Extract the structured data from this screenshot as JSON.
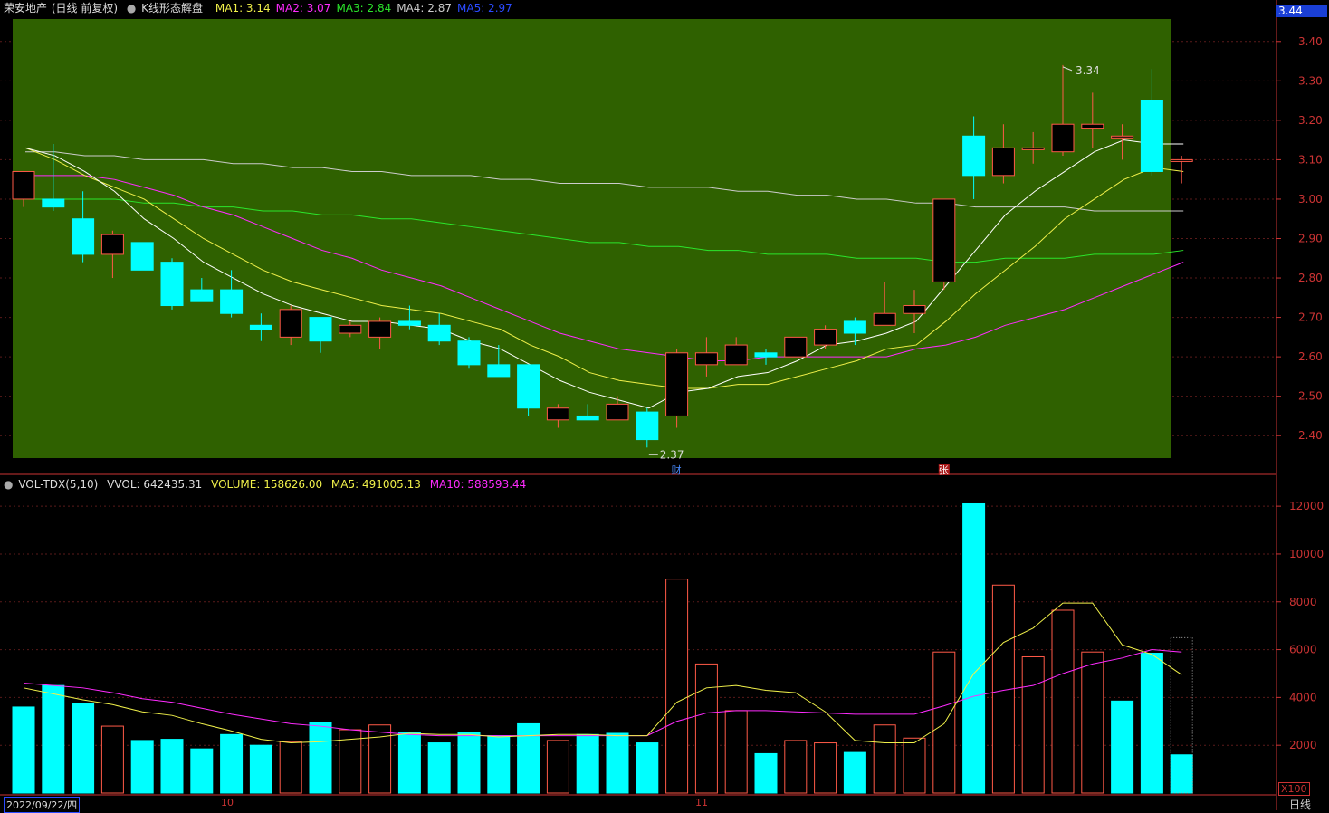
{
  "header": {
    "stock": "荣安地产",
    "mode": "(日线 前复权)",
    "indicator": "K线形态解盘",
    "ma": [
      {
        "label": "MA1:",
        "value": "3.14",
        "color": "#f0f04a"
      },
      {
        "label": "MA2:",
        "value": "3.07",
        "color": "#ff2bff"
      },
      {
        "label": "MA3:",
        "value": "2.84",
        "color": "#2be62b"
      },
      {
        "label": "MA4:",
        "value": "2.87",
        "color": "#cccccc"
      },
      {
        "label": "MA5:",
        "value": "2.97",
        "color": "#2b4bff"
      }
    ],
    "current_price": "3.44"
  },
  "volume_header": {
    "name": "VOL-TDX(5,10)",
    "vvol": "VVOL: 642435.31",
    "volume": "VOLUME: 158626.00",
    "ma5": "MA5: 491005.13",
    "ma10": "MA10: 588593.44"
  },
  "footer": {
    "date": "2022/09/22/四",
    "month_labels": [
      "10",
      "11"
    ],
    "period": "日线",
    "unit": "X100"
  },
  "markers": {
    "cai": "财",
    "zhang": "张",
    "high_label": "3.34",
    "low_label": "2.37"
  },
  "colors": {
    "panel_bg": "#2f6100",
    "up": "#ff5a48",
    "down": "#00ffff",
    "ma1": "#ffffff",
    "ma2": "#f0f04a",
    "ma3": "#ff2bff",
    "ma4": "#2be62b",
    "ma5": "#cccccc",
    "vol_ma5": "#f0f04a",
    "vol_ma10": "#ff2bff",
    "axis": "#cc3333"
  },
  "chart_data": {
    "type": "candlestick",
    "price_axis": {
      "ticks": [
        "3.40",
        "3.30",
        "3.20",
        "3.10",
        "3.00",
        "2.90",
        "2.80",
        "2.70",
        "2.60",
        "2.50",
        "2.40"
      ],
      "range": [
        2.37,
        3.44
      ]
    },
    "volume_axis": {
      "ticks": [
        "12000",
        "10000",
        "8000",
        "6000",
        "4000",
        "2000"
      ],
      "range": [
        0,
        12800
      ]
    },
    "candles": [
      {
        "o": 3.0,
        "h": 3.07,
        "l": 2.98,
        "c": 3.07
      },
      {
        "o": 3.0,
        "h": 3.14,
        "l": 2.97,
        "c": 2.98
      },
      {
        "o": 2.95,
        "h": 3.02,
        "l": 2.84,
        "c": 2.86
      },
      {
        "o": 2.86,
        "h": 2.92,
        "l": 2.8,
        "c": 2.91
      },
      {
        "o": 2.89,
        "h": 2.89,
        "l": 2.82,
        "c": 2.82
      },
      {
        "o": 2.84,
        "h": 2.85,
        "l": 2.72,
        "c": 2.73
      },
      {
        "o": 2.77,
        "h": 2.8,
        "l": 2.74,
        "c": 2.74
      },
      {
        "o": 2.77,
        "h": 2.82,
        "l": 2.7,
        "c": 2.71
      },
      {
        "o": 2.68,
        "h": 2.71,
        "l": 2.64,
        "c": 2.67
      },
      {
        "o": 2.65,
        "h": 2.73,
        "l": 2.63,
        "c": 2.72
      },
      {
        "o": 2.7,
        "h": 2.7,
        "l": 2.61,
        "c": 2.64
      },
      {
        "o": 2.66,
        "h": 2.69,
        "l": 2.65,
        "c": 2.68
      },
      {
        "o": 2.65,
        "h": 2.7,
        "l": 2.62,
        "c": 2.69
      },
      {
        "o": 2.69,
        "h": 2.73,
        "l": 2.67,
        "c": 2.68
      },
      {
        "o": 2.68,
        "h": 2.71,
        "l": 2.63,
        "c": 2.64
      },
      {
        "o": 2.64,
        "h": 2.65,
        "l": 2.57,
        "c": 2.58
      },
      {
        "o": 2.58,
        "h": 2.63,
        "l": 2.55,
        "c": 2.55
      },
      {
        "o": 2.58,
        "h": 2.58,
        "l": 2.45,
        "c": 2.47
      },
      {
        "o": 2.44,
        "h": 2.48,
        "l": 2.42,
        "c": 2.47
      },
      {
        "o": 2.45,
        "h": 2.48,
        "l": 2.44,
        "c": 2.44
      },
      {
        "o": 2.44,
        "h": 2.5,
        "l": 2.44,
        "c": 2.48
      },
      {
        "o": 2.46,
        "h": 2.47,
        "l": 2.37,
        "c": 2.39
      },
      {
        "o": 2.45,
        "h": 2.62,
        "l": 2.42,
        "c": 2.61
      },
      {
        "o": 2.58,
        "h": 2.65,
        "l": 2.55,
        "c": 2.61
      },
      {
        "o": 2.58,
        "h": 2.65,
        "l": 2.58,
        "c": 2.63
      },
      {
        "o": 2.61,
        "h": 2.62,
        "l": 2.58,
        "c": 2.6
      },
      {
        "o": 2.6,
        "h": 2.65,
        "l": 2.6,
        "c": 2.65
      },
      {
        "o": 2.63,
        "h": 2.68,
        "l": 2.62,
        "c": 2.67
      },
      {
        "o": 2.69,
        "h": 2.7,
        "l": 2.63,
        "c": 2.66
      },
      {
        "o": 2.68,
        "h": 2.79,
        "l": 2.68,
        "c": 2.71
      },
      {
        "o": 2.71,
        "h": 2.77,
        "l": 2.66,
        "c": 2.73
      },
      {
        "o": 2.79,
        "h": 3.0,
        "l": 2.77,
        "c": 3.0
      },
      {
        "o": 3.16,
        "h": 3.21,
        "l": 3.0,
        "c": 3.06
      },
      {
        "o": 3.06,
        "h": 3.19,
        "l": 3.04,
        "c": 3.13
      },
      {
        "o": 3.13,
        "h": 3.17,
        "l": 3.09,
        "c": 3.13
      },
      {
        "o": 3.12,
        "h": 3.34,
        "l": 3.11,
        "c": 3.19
      },
      {
        "o": 3.18,
        "h": 3.27,
        "l": 3.13,
        "c": 3.19
      },
      {
        "o": 3.16,
        "h": 3.19,
        "l": 3.1,
        "c": 3.16
      },
      {
        "o": 3.25,
        "h": 3.33,
        "l": 3.06,
        "c": 3.07
      },
      {
        "o": 3.1,
        "h": 3.11,
        "l": 3.04,
        "c": 3.1
      }
    ],
    "ma1": [
      3.13,
      3.11,
      3.07,
      3.02,
      2.95,
      2.9,
      2.84,
      2.8,
      2.76,
      2.73,
      2.71,
      2.69,
      2.69,
      2.68,
      2.67,
      2.64,
      2.62,
      2.58,
      2.54,
      2.51,
      2.49,
      2.47,
      2.51,
      2.52,
      2.55,
      2.56,
      2.59,
      2.63,
      2.64,
      2.66,
      2.69,
      2.78,
      2.87,
      2.96,
      3.02,
      3.07,
      3.12,
      3.15,
      3.14,
      3.14
    ],
    "ma2": [
      3.13,
      3.1,
      3.06,
      3.03,
      3.0,
      2.95,
      2.9,
      2.86,
      2.82,
      2.79,
      2.77,
      2.75,
      2.73,
      2.72,
      2.71,
      2.69,
      2.67,
      2.63,
      2.6,
      2.56,
      2.54,
      2.53,
      2.52,
      2.52,
      2.53,
      2.53,
      2.55,
      2.57,
      2.59,
      2.62,
      2.63,
      2.69,
      2.76,
      2.82,
      2.88,
      2.95,
      3.0,
      3.05,
      3.08,
      3.07
    ],
    "ma3": [
      3.06,
      3.06,
      3.06,
      3.05,
      3.03,
      3.01,
      2.98,
      2.96,
      2.93,
      2.9,
      2.87,
      2.85,
      2.82,
      2.8,
      2.78,
      2.75,
      2.72,
      2.69,
      2.66,
      2.64,
      2.62,
      2.61,
      2.6,
      2.59,
      2.59,
      2.6,
      2.6,
      2.6,
      2.6,
      2.6,
      2.62,
      2.63,
      2.65,
      2.68,
      2.7,
      2.72,
      2.75,
      2.78,
      2.81,
      2.84
    ],
    "ma4": [
      3.0,
      3.0,
      3.0,
      3.0,
      2.99,
      2.99,
      2.98,
      2.98,
      2.97,
      2.97,
      2.96,
      2.96,
      2.95,
      2.95,
      2.94,
      2.93,
      2.92,
      2.91,
      2.9,
      2.89,
      2.89,
      2.88,
      2.88,
      2.87,
      2.87,
      2.86,
      2.86,
      2.86,
      2.85,
      2.85,
      2.85,
      2.84,
      2.84,
      2.85,
      2.85,
      2.85,
      2.86,
      2.86,
      2.86,
      2.87
    ],
    "ma5": [
      3.12,
      3.12,
      3.11,
      3.11,
      3.1,
      3.1,
      3.1,
      3.09,
      3.09,
      3.08,
      3.08,
      3.07,
      3.07,
      3.06,
      3.06,
      3.06,
      3.05,
      3.05,
      3.04,
      3.04,
      3.04,
      3.03,
      3.03,
      3.03,
      3.02,
      3.02,
      3.01,
      3.01,
      3.0,
      3.0,
      2.99,
      2.99,
      2.98,
      2.98,
      2.98,
      2.98,
      2.97,
      2.97,
      2.97,
      2.97
    ],
    "volume": [
      3600,
      4500,
      3750,
      2800,
      2200,
      2250,
      1850,
      2450,
      2000,
      2150,
      2950,
      2650,
      2850,
      2550,
      2100,
      2550,
      2400,
      2900,
      2200,
      2450,
      2500,
      2100,
      8950,
      5400,
      3450,
      1650,
      2200,
      2100,
      1700,
      2850,
      2300,
      5900,
      12100,
      8700,
      5700,
      7650,
      5900,
      3850,
      5850,
      1600
    ],
    "vol_ma5": [
      4400,
      4150,
      3900,
      3700,
      3400,
      3250,
      2900,
      2600,
      2250,
      2100,
      2150,
      2250,
      2350,
      2500,
      2450,
      2450,
      2350,
      2400,
      2450,
      2450,
      2400,
      2400,
      3800,
      4400,
      4500,
      4300,
      4200,
      3400,
      2200,
      2100,
      2100,
      2900,
      5000,
      6300,
      6900,
      7950,
      7950,
      6200,
      5800,
      4950
    ],
    "vol_ma10": [
      4600,
      4500,
      4400,
      4200,
      3950,
      3800,
      3550,
      3300,
      3100,
      2900,
      2800,
      2650,
      2550,
      2450,
      2400,
      2400,
      2400,
      2400,
      2400,
      2400,
      2400,
      2400,
      3000,
      3350,
      3450,
      3450,
      3400,
      3350,
      3300,
      3300,
      3300,
      3650,
      4050,
      4300,
      4500,
      5000,
      5400,
      5650,
      6000,
      5900
    ],
    "bar_filled": [
      true,
      true,
      true,
      false,
      true,
      true,
      true,
      true,
      true,
      false,
      true,
      false,
      false,
      true,
      true,
      true,
      true,
      true,
      false,
      true,
      true,
      true,
      false,
      false,
      false,
      true,
      false,
      false,
      true,
      false,
      false,
      false,
      true,
      false,
      false,
      false,
      false,
      true,
      true,
      true
    ]
  }
}
